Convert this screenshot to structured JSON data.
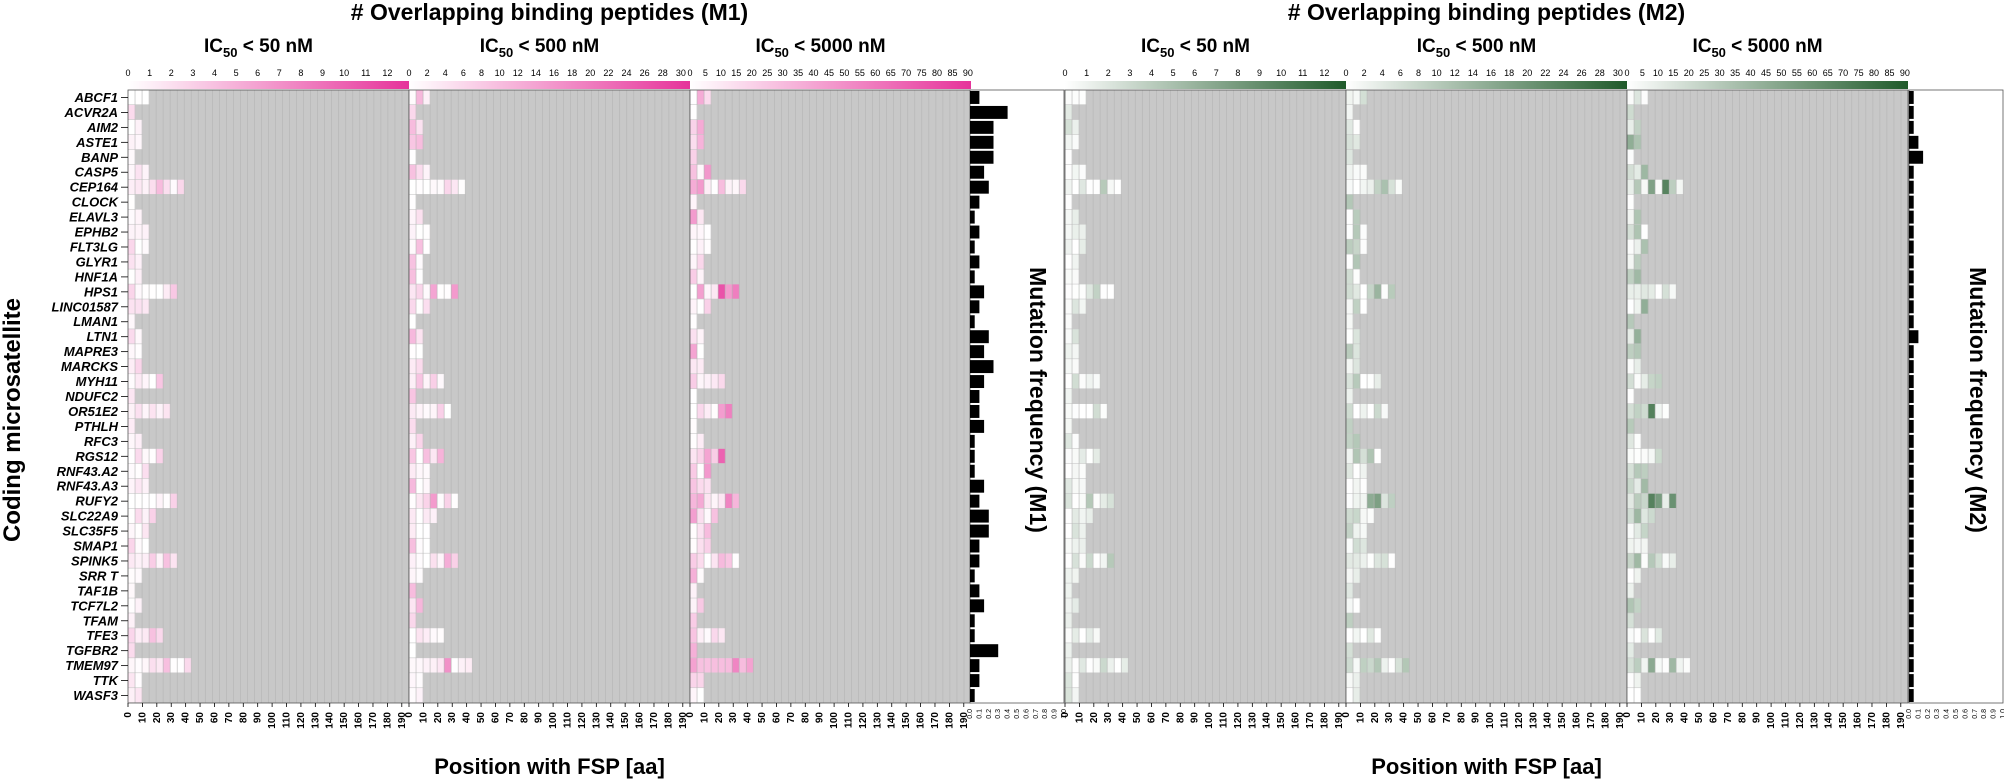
{
  "chart_data": {
    "type": "heatmap",
    "genes": [
      "ABCF1",
      "ACVR2A",
      "AIM2",
      "ASTE1",
      "BANP",
      "CASP5",
      "CEP164",
      "CLOCK",
      "ELAVL3",
      "EPHB2",
      "FLT3LG",
      "GLYR1",
      "HNF1A",
      "HPS1",
      "LINC01587",
      "LMAN1",
      "LTN1",
      "MAPRE3",
      "MARCKS",
      "MYH11",
      "NDUFC2",
      "OR51E2",
      "PTHLH",
      "RFC3",
      "RGS12",
      "RNF43.A2",
      "RNF43.A3",
      "RUFY2",
      "SLC22A9",
      "SLC35F5",
      "SMAP1",
      "SPINK5",
      "SRR T",
      "TAF1B",
      "TCF7L2",
      "TFAM",
      "TFE3",
      "TGFBR2",
      "TMEM97",
      "TTK",
      "WASF3"
    ],
    "fsp_length_aa": [
      14,
      2,
      9,
      12,
      3,
      13,
      40,
      2,
      9,
      16,
      15,
      11,
      11,
      37,
      13,
      4,
      8,
      10,
      8,
      25,
      7,
      29,
      5,
      8,
      24,
      13,
      16,
      35,
      19,
      17,
      13,
      33,
      11,
      5,
      9,
      2,
      26,
      4,
      47,
      10,
      9
    ],
    "mutation_frequency_M1": [
      0.02,
      0.08,
      0.05,
      0.05,
      0.05,
      0.03,
      0.04,
      0.02,
      0.01,
      0.02,
      0.01,
      0.02,
      0.01,
      0.03,
      0.02,
      0.01,
      0.04,
      0.03,
      0.05,
      0.03,
      0.02,
      0.02,
      0.03,
      0.01,
      0.01,
      0.01,
      0.03,
      0.02,
      0.04,
      0.04,
      0.02,
      0.02,
      0.01,
      0.02,
      0.03,
      0.01,
      0.01,
      0.06,
      0.02,
      0.02,
      0.01
    ],
    "mutation_frequency_M2": [
      0.01,
      0.01,
      0.01,
      0.02,
      0.03,
      0.01,
      0.01,
      0.01,
      0.01,
      0.01,
      0.01,
      0.01,
      0.01,
      0.01,
      0.01,
      0.01,
      0.02,
      0.01,
      0.01,
      0.01,
      0.01,
      0.01,
      0.01,
      0.01,
      0.01,
      0.01,
      0.01,
      0.01,
      0.01,
      0.01,
      0.01,
      0.01,
      0.01,
      0.01,
      0.01,
      0.01,
      0.01,
      0.01,
      0.01,
      0.01,
      0.01
    ],
    "mutation_frequency_ticks": [
      "0.0",
      "0.1",
      "0.2",
      "0.3",
      "0.4",
      "0.5",
      "0.6",
      "0.7",
      "0.8",
      "0.9",
      "1.0"
    ],
    "position_ticks": [
      "0",
      "10",
      "20",
      "30",
      "40",
      "50",
      "60",
      "70",
      "80",
      "90",
      "100",
      "110",
      "120",
      "130",
      "140",
      "150",
      "160",
      "170",
      "180",
      "190"
    ],
    "position_max": 195,
    "groups": [
      {
        "title": "# Overlapping binding peptides (M1)",
        "palette": "pink",
        "colors": {
          "low": "#ffffff",
          "high": "#e6339a"
        },
        "panels": [
          {
            "threshold_prefix": "IC",
            "threshold_sub": "50",
            "threshold_suffix": " < 50 nM",
            "scale_ticks": [
              "0",
              "1",
              "2",
              "3",
              "4",
              "5",
              "6",
              "7",
              "8",
              "9",
              "10",
              "11",
              "12"
            ],
            "scale_max": 13
          },
          {
            "threshold_prefix": "IC",
            "threshold_sub": "50",
            "threshold_suffix": " < 500 nM",
            "scale_ticks": [
              "0",
              "2",
              "4",
              "6",
              "8",
              "10",
              "12",
              "14",
              "16",
              "18",
              "20",
              "22",
              "24",
              "26",
              "28",
              "30"
            ],
            "scale_max": 31
          },
          {
            "threshold_prefix": "IC",
            "threshold_sub": "50",
            "threshold_suffix": " < 5000 nM",
            "scale_ticks": [
              "0",
              "5",
              "10",
              "15",
              "20",
              "25",
              "30",
              "35",
              "40",
              "45",
              "50",
              "55",
              "60",
              "65",
              "70",
              "75",
              "80",
              "85",
              "90"
            ],
            "scale_max": 91
          }
        ],
        "freq_label": "Mutation frequency (M1)"
      },
      {
        "title": "# Overlapping binding peptides (M2)",
        "palette": "green",
        "colors": {
          "low": "#ffffff",
          "high": "#1f5a2a"
        },
        "panels": [
          {
            "threshold_prefix": "IC",
            "threshold_sub": "50",
            "threshold_suffix": " < 50 nM",
            "scale_ticks": [
              "0",
              "1",
              "2",
              "3",
              "4",
              "5",
              "6",
              "7",
              "8",
              "9",
              "10",
              "11",
              "12"
            ],
            "scale_max": 13
          },
          {
            "threshold_prefix": "IC",
            "threshold_sub": "50",
            "threshold_suffix": " < 500 nM",
            "scale_ticks": [
              "0",
              "2",
              "4",
              "6",
              "8",
              "10",
              "12",
              "14",
              "16",
              "18",
              "20",
              "22",
              "24",
              "26",
              "28",
              "30"
            ],
            "scale_max": 31
          },
          {
            "threshold_prefix": "IC",
            "threshold_sub": "50",
            "threshold_suffix": " < 5000 nM",
            "scale_ticks": [
              "0",
              "5",
              "10",
              "15",
              "20",
              "25",
              "30",
              "35",
              "40",
              "45",
              "50",
              "55",
              "60",
              "65",
              "70",
              "75",
              "80",
              "85",
              "90"
            ],
            "scale_max": 91
          }
        ],
        "freq_label": "Mutation frequency (M2)"
      }
    ],
    "ylabel": "Coding microsatellite",
    "xlabel": "Position with FSP [aa]",
    "background_color": "#c8c8c8",
    "bar_color": "#000000"
  }
}
